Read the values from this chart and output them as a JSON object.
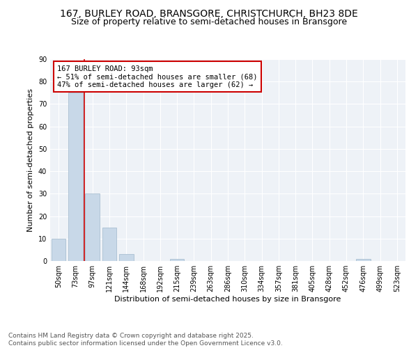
{
  "title1": "167, BURLEY ROAD, BRANSGORE, CHRISTCHURCH, BH23 8DE",
  "title2": "Size of property relative to semi-detached houses in Bransgore",
  "xlabel": "Distribution of semi-detached houses by size in Bransgore",
  "ylabel": "Number of semi-detached properties",
  "categories": [
    "50sqm",
    "73sqm",
    "97sqm",
    "121sqm",
    "144sqm",
    "168sqm",
    "192sqm",
    "215sqm",
    "239sqm",
    "263sqm",
    "286sqm",
    "310sqm",
    "334sqm",
    "357sqm",
    "381sqm",
    "405sqm",
    "428sqm",
    "452sqm",
    "476sqm",
    "499sqm",
    "523sqm"
  ],
  "values": [
    10,
    75,
    30,
    15,
    3,
    0,
    0,
    1,
    0,
    0,
    0,
    0,
    0,
    0,
    0,
    0,
    0,
    0,
    1,
    0,
    0
  ],
  "bar_color": "#c8d8e8",
  "bar_edge_color": "#a0b8cc",
  "annotation_text": "167 BURLEY ROAD: 93sqm\n← 51% of semi-detached houses are smaller (68)\n47% of semi-detached houses are larger (62) →",
  "annotation_box_color": "#ffffff",
  "annotation_box_edge": "#cc0000",
  "vline_color": "#cc0000",
  "ylim": [
    0,
    90
  ],
  "yticks": [
    0,
    10,
    20,
    30,
    40,
    50,
    60,
    70,
    80,
    90
  ],
  "background_color": "#eef2f7",
  "grid_color": "#ffffff",
  "footer_text": "Contains HM Land Registry data © Crown copyright and database right 2025.\nContains public sector information licensed under the Open Government Licence v3.0.",
  "title_fontsize": 10,
  "subtitle_fontsize": 9,
  "axis_label_fontsize": 8,
  "tick_fontsize": 7,
  "annotation_fontsize": 7.5,
  "footer_fontsize": 6.5
}
